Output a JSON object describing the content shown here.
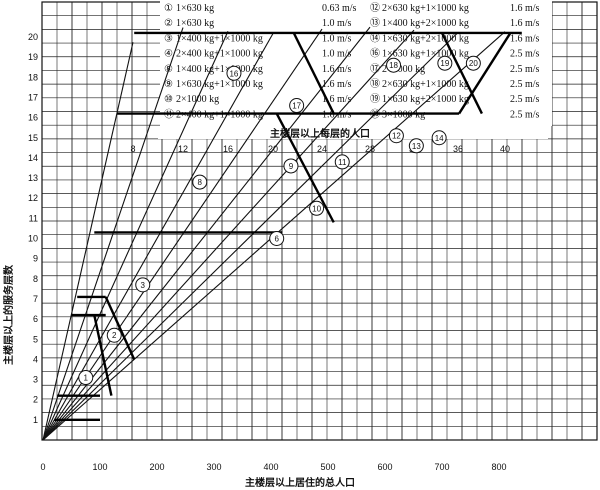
{
  "chart_data": {
    "type": "line",
    "xlabel": "主楼层以上居住的总人口",
    "ylabel": "主楼层以上的服务层数",
    "top_axis_label": "主楼层以上每层的人口",
    "xlim": [
      0,
      880
    ],
    "ylim": [
      0,
      21
    ],
    "x_ticks": [
      "0",
      "100",
      "200",
      "300",
      "400",
      "500",
      "600",
      "700",
      "800"
    ],
    "y_ticks": [
      "1",
      "2",
      "3",
      "4",
      "5",
      "6",
      "7",
      "8",
      "9",
      "10",
      "11",
      "12",
      "13",
      "14",
      "15",
      "16",
      "17",
      "18",
      "19",
      "20"
    ],
    "top_ticks": [
      "8",
      "12",
      "16",
      "20",
      "24",
      "28",
      "32",
      "36",
      "40"
    ],
    "per_floor_rays": [
      8,
      12,
      16,
      20,
      24,
      28,
      32,
      36,
      40
    ],
    "legend": [
      {
        "id": "1",
        "marker": "①",
        "spec": "1×630 kg",
        "speed": "0.63 m/s"
      },
      {
        "id": "2",
        "marker": "②",
        "spec": "1×630 kg",
        "speed": "1.0 m/s"
      },
      {
        "id": "3",
        "marker": "③",
        "spec": "1×400 kg+1×1000 kg",
        "speed": "1.0 m/s"
      },
      {
        "id": "4",
        "marker": "④",
        "spec": "2×400 kg+1×1000 kg",
        "speed": "1.0 m/s"
      },
      {
        "id": "8",
        "marker": "⑧",
        "spec": "1×400 kg+1×1000 kg",
        "speed": "1.6 m/s"
      },
      {
        "id": "9",
        "marker": "⑨",
        "spec": "1×630 kg+1×1000 kg",
        "speed": "1.6 m/s"
      },
      {
        "id": "10",
        "marker": "⑩",
        "spec": "2×1000 kg",
        "speed": "1.6 m/s"
      },
      {
        "id": "11",
        "marker": "⑪",
        "spec": "2×400 kg+1×1000 kg",
        "speed": "1.6 m/s"
      },
      {
        "id": "12",
        "marker": "⑫",
        "spec": "2×630 kg+1×1000 kg",
        "speed": "1.6 m/s"
      },
      {
        "id": "13",
        "marker": "⑬",
        "spec": "1×400 kg+2×1000 kg",
        "speed": "1.6 m/s"
      },
      {
        "id": "14",
        "marker": "⑭",
        "spec": "1×630 kg+2×1000 kg",
        "speed": "1.6 m/s"
      },
      {
        "id": "16",
        "marker": "⑯",
        "spec": "1×630 kg+1×1000 kg",
        "speed": "2.5 m/s"
      },
      {
        "id": "17",
        "marker": "⑰",
        "spec": "2×1000 kg",
        "speed": "2.5 m/s"
      },
      {
        "id": "18",
        "marker": "⑱",
        "spec": "2×630 kg+1×1000 kg",
        "speed": "2.5 m/s"
      },
      {
        "id": "19",
        "marker": "⑲",
        "spec": "1×630 kg+2×1000 kg",
        "speed": "2.5 m/s"
      },
      {
        "id": "20",
        "marker": "⑳",
        "spec": "3×1000 kg",
        "speed": "2.5 m/s"
      }
    ],
    "region_labels": [
      {
        "text": "1",
        "x": 75,
        "y": 3.1
      },
      {
        "text": "2",
        "x": 125,
        "y": 5.2
      },
      {
        "text": "3",
        "x": 175,
        "y": 7.7
      },
      {
        "text": "6",
        "x": 410,
        "y": 10.0
      },
      {
        "text": "8",
        "x": 275,
        "y": 12.8
      },
      {
        "text": "9",
        "x": 435,
        "y": 13.6
      },
      {
        "text": "10",
        "x": 480,
        "y": 11.5
      },
      {
        "text": "11",
        "x": 525,
        "y": 13.8
      },
      {
        "text": "12",
        "x": 620,
        "y": 15.1
      },
      {
        "text": "13",
        "x": 655,
        "y": 14.6
      },
      {
        "text": "14",
        "x": 695,
        "y": 15.0
      },
      {
        "text": "16",
        "x": 335,
        "y": 18.2
      },
      {
        "text": "17",
        "x": 445,
        "y": 16.6
      },
      {
        "text": "18",
        "x": 615,
        "y": 18.6
      },
      {
        "text": "19",
        "x": 705,
        "y": 18.7
      },
      {
        "text": "20",
        "x": 755,
        "y": 18.7
      }
    ],
    "region_boundaries": [
      [
        [
          20,
          1
        ],
        [
          100,
          1
        ]
      ],
      [
        [
          25,
          2.2
        ],
        [
          100,
          2.2
        ]
      ],
      [
        [
          50,
          6.2
        ],
        [
          110,
          6.2
        ]
      ],
      [
        [
          60,
          7.1
        ],
        [
          110,
          7.1
        ]
      ],
      [
        [
          90,
          10.3
        ],
        [
          420,
          10.3
        ]
      ],
      [
        [
          130,
          16.2
        ],
        [
          730,
          16.2
        ]
      ],
      [
        [
          160,
          20.2
        ],
        [
          840,
          20.2
        ]
      ],
      [
        [
          110,
          7.1
        ],
        [
          160,
          4
        ]
      ],
      [
        [
          90,
          6.2
        ],
        [
          120,
          2.2
        ]
      ],
      [
        [
          410,
          16.2
        ],
        [
          510,
          10.8
        ]
      ],
      [
        [
          440,
          20.2
        ],
        [
          510,
          16.2
        ]
      ],
      [
        [
          700,
          20.2
        ],
        [
          770,
          16.2
        ]
      ],
      [
        [
          820,
          20.2
        ],
        [
          730,
          16.2
        ]
      ]
    ]
  }
}
